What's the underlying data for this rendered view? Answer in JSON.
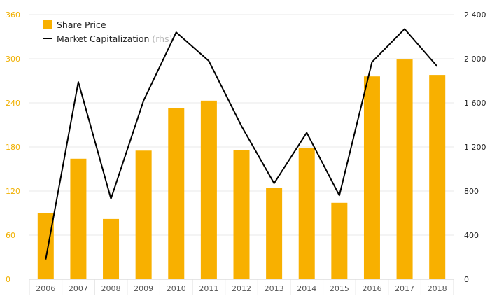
{
  "chart_data": {
    "type": "bar",
    "categories": [
      "2006",
      "2007",
      "2008",
      "2009",
      "2010",
      "2011",
      "2012",
      "2013",
      "2014",
      "2015",
      "2016",
      "2017",
      "2018"
    ],
    "series": [
      {
        "name": "Share Price",
        "type": "bar",
        "axis": "left",
        "color": "#f8b000",
        "values": [
          90,
          164,
          82,
          175,
          233,
          243,
          176,
          124,
          179,
          104,
          276,
          299,
          278
        ]
      },
      {
        "name": "Market Capitalization",
        "legend_suffix": "(rhs)",
        "type": "line",
        "axis": "right",
        "color": "#000000",
        "values": [
          180,
          1790,
          730,
          1620,
          2240,
          1980,
          1390,
          870,
          1330,
          760,
          1970,
          2270,
          1930
        ]
      }
    ],
    "y_left": {
      "range": [
        0,
        360
      ],
      "ticks": [
        "0",
        "60",
        "120",
        "180",
        "240",
        "300",
        "360"
      ],
      "tick_color": "#f0b000"
    },
    "y_right": {
      "range": [
        0,
        2400
      ],
      "ticks": [
        "0",
        "400",
        "800",
        "1 200",
        "1 600",
        "2 000",
        "2 400"
      ],
      "tick_color": "#222222"
    },
    "grid": true,
    "legend": "top-left",
    "title": "",
    "xlabel": "",
    "ylabel": ""
  }
}
